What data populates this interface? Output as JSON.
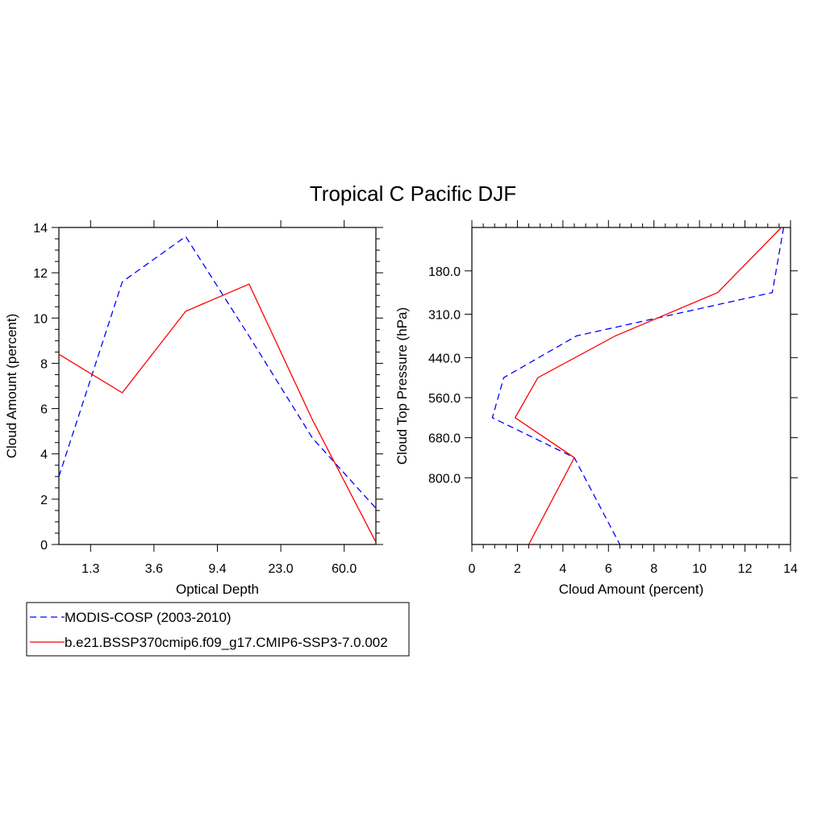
{
  "figure_title": "Tropical C Pacific DJF",
  "colors": {
    "modis": "#0000ff",
    "model": "#ff0000",
    "axes": "#000000"
  },
  "legend": [
    {
      "label": "MODIS-COSP (2003-2010)",
      "color": "#0000ff",
      "dash": true
    },
    {
      "label": "b.e21.BSSP370cmip6.f09_g17.CMIP6-SSP3-7.0.002",
      "color": "#ff0000",
      "dash": false
    }
  ],
  "chart_data": [
    {
      "type": "line",
      "xlabel": "Optical Depth",
      "ylabel": "Cloud Amount (percent)",
      "x_categories": [
        "0.15",
        "1.3",
        "2.45",
        "3.6",
        "6.5",
        "9.4",
        "16.2",
        "23.0",
        "41.5",
        "60.0",
        "80.0"
      ],
      "x_tick_labels": [
        "1.3",
        "3.6",
        "9.4",
        "23.0",
        "60.0"
      ],
      "ylim": [
        0,
        14
      ],
      "y_ticks": [
        "0",
        "2",
        "4",
        "6",
        "8",
        "10",
        "12",
        "14"
      ],
      "series": [
        {
          "name": "MODIS-COSP (2003-2010)",
          "x": [
            "0.15",
            "2.45",
            "6.5",
            "16.2",
            "41.5",
            "80.0"
          ],
          "values": [
            3.0,
            11.6,
            13.6,
            9.2,
            4.7,
            1.6
          ]
        },
        {
          "name": "b.e21.BSSP370cmip6.f09_g17.CMIP6-SSP3-7.0.002",
          "x": [
            "0.15",
            "2.45",
            "6.5",
            "16.2",
            "41.5",
            "80.0"
          ],
          "values": [
            8.4,
            6.7,
            10.3,
            11.5,
            5.5,
            0.1
          ]
        }
      ]
    },
    {
      "type": "line",
      "orientation": "horizontal",
      "xlabel": "Cloud Amount (percent)",
      "ylabel": "Cloud Top Pressure (hPa)",
      "xlim": [
        0,
        14
      ],
      "x_ticks": [
        "0",
        "2",
        "4",
        "6",
        "8",
        "10",
        "12",
        "14"
      ],
      "y_range_hPa": [
        50,
        1000
      ],
      "y_tick_labels": [
        "180.0",
        "310.0",
        "440.0",
        "560.0",
        "680.0",
        "800.0"
      ],
      "y_ticks_hPa": [
        180,
        310,
        440,
        560,
        680,
        800
      ],
      "series": [
        {
          "name": "MODIS-COSP (2003-2010)",
          "pressure_hPa": [
            50,
            245,
            375,
            500,
            620,
            740,
            1000
          ],
          "values": [
            13.7,
            13.2,
            4.6,
            1.4,
            0.9,
            4.5,
            6.5
          ]
        },
        {
          "name": "b.e21.BSSP370cmip6.f09_g17.CMIP6-SSP3-7.0.002",
          "pressure_hPa": [
            50,
            245,
            375,
            500,
            620,
            740,
            1000
          ],
          "values": [
            13.6,
            10.8,
            6.3,
            2.9,
            1.9,
            4.5,
            2.5
          ]
        }
      ]
    }
  ]
}
